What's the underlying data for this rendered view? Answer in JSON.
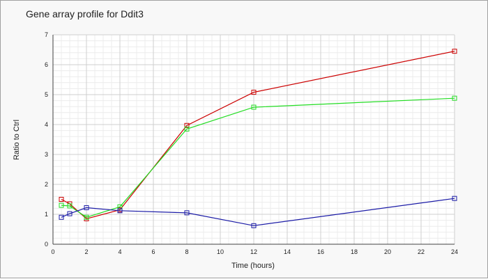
{
  "chart_data": {
    "type": "line",
    "title": "Gene array profile for Ddit3",
    "xlabel": "Time (hours)",
    "ylabel": "Ratio to Ctrl",
    "xlim": [
      0,
      24
    ],
    "ylim": [
      0,
      7
    ],
    "xticks": [
      0,
      2,
      4,
      6,
      8,
      10,
      12,
      14,
      16,
      18,
      20,
      22,
      24
    ],
    "yticks": [
      0,
      1,
      2,
      3,
      4,
      5,
      6,
      7
    ],
    "grid": true,
    "marker": "square",
    "series": [
      {
        "color": "#cc0000",
        "x": [
          0.5,
          1,
          2,
          4,
          8,
          12,
          24
        ],
        "y": [
          1.5,
          1.35,
          0.85,
          1.15,
          3.97,
          5.08,
          6.45
        ]
      },
      {
        "color": "#22dd22",
        "x": [
          0.5,
          1,
          2,
          4,
          8,
          12,
          24
        ],
        "y": [
          1.3,
          1.28,
          0.9,
          1.25,
          3.85,
          4.58,
          4.88
        ]
      },
      {
        "color": "#1a1aa6",
        "x": [
          0.5,
          1,
          2,
          4,
          8,
          12,
          24
        ],
        "y": [
          0.9,
          1.02,
          1.22,
          1.12,
          1.05,
          0.62,
          1.53
        ]
      }
    ]
  }
}
